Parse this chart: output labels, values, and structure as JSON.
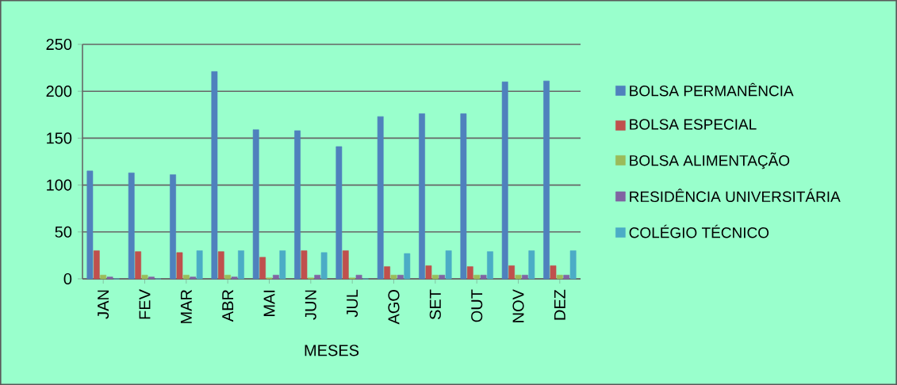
{
  "chart_data": {
    "type": "bar",
    "xlabel": "MESES",
    "categories": [
      "JAN",
      "FEV",
      "MAR",
      "ABR",
      "MAI",
      "JUN",
      "JUL",
      "AGO",
      "SET",
      "OUT",
      "NOV",
      "DEZ"
    ],
    "series": [
      {
        "name": "BOLSA PERMANÊNCIA",
        "color": "#4f81bd",
        "values": [
          115,
          113,
          111,
          221,
          159,
          158,
          141,
          173,
          176,
          176,
          210,
          211
        ]
      },
      {
        "name": "BOLSA ESPECIAL",
        "color": "#c0504d",
        "values": [
          30,
          29,
          28,
          29,
          23,
          30,
          30,
          13,
          14,
          13,
          14,
          14
        ]
      },
      {
        "name": "BOLSA ALIMENTAÇÃO",
        "color": "#9bbb59",
        "values": [
          4,
          4,
          4,
          4,
          1,
          1,
          1,
          4,
          4,
          4,
          4,
          4
        ]
      },
      {
        "name": "RESIDÊNCIA UNIVERSITÁRIA",
        "color": "#8064a2",
        "values": [
          2,
          2,
          2,
          2,
          4,
          4,
          4,
          4,
          4,
          4,
          4,
          4
        ]
      },
      {
        "name": "COLÉGIO TÉCNICO",
        "color": "#4bacc6",
        "values": [
          0,
          0,
          30,
          30,
          30,
          28,
          0,
          27,
          30,
          29,
          30,
          30
        ]
      }
    ],
    "ylim": [
      0,
      250
    ],
    "yticks": [
      0,
      50,
      100,
      150,
      200,
      250
    ],
    "grid": "y",
    "legend": "right"
  }
}
